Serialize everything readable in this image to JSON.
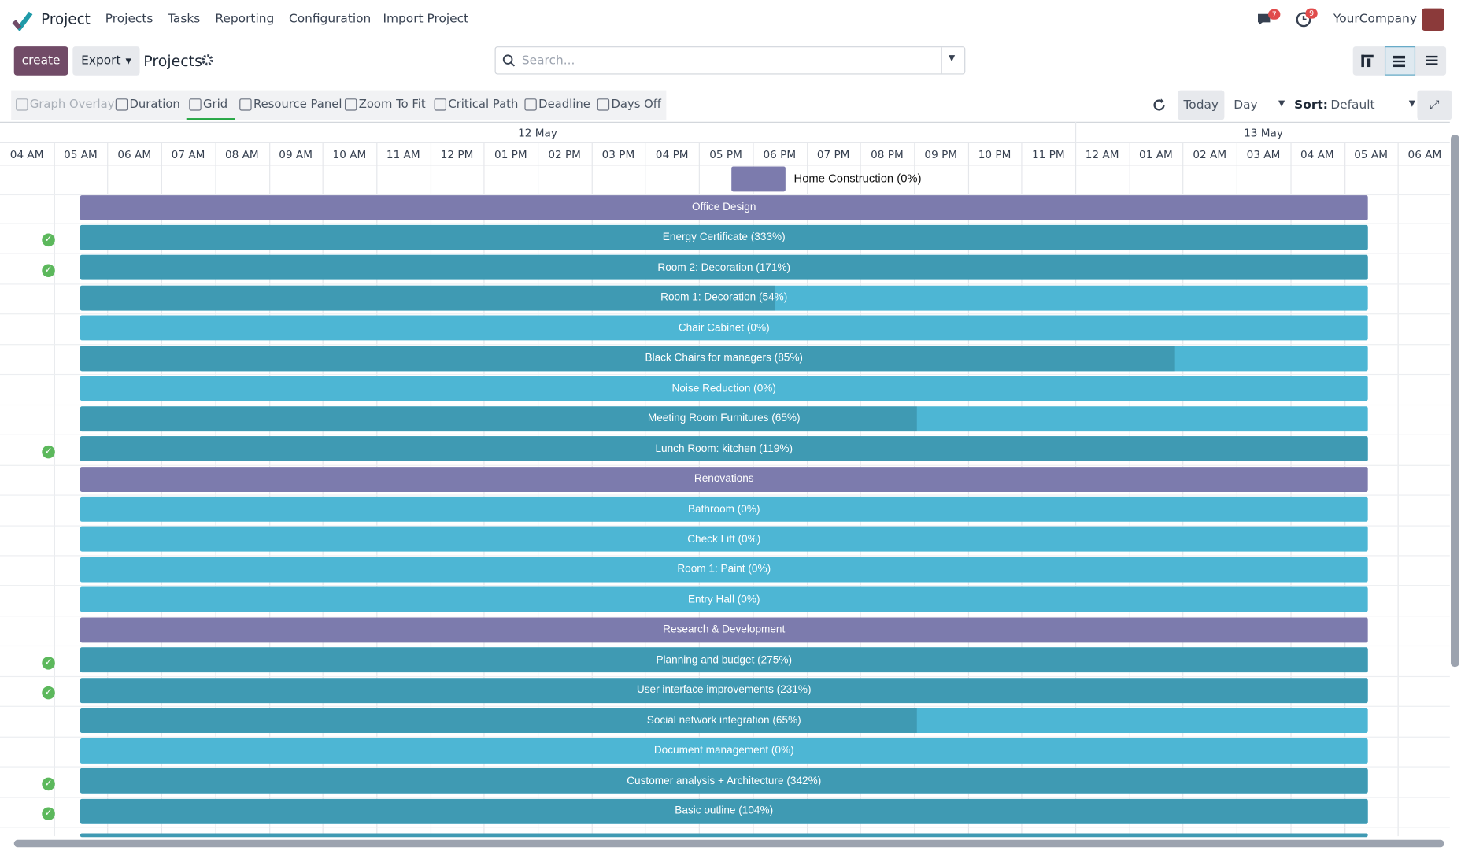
{
  "header": {
    "app": "Project",
    "menu": [
      "Projects",
      "Tasks",
      "Reporting",
      "Configuration",
      "Import Project"
    ],
    "badges": [
      7,
      9
    ],
    "company": "YourCompany"
  },
  "control_panel": {
    "create": "create",
    "export": "Export",
    "breadcrumb": "Projects",
    "search_placeholder": "Search..."
  },
  "toolbar": {
    "tools": [
      "Graph Overlay",
      "Duration",
      "Grid",
      "Resource Panel",
      "Zoom To Fit",
      "Critical Path",
      "Deadline",
      "Days Off"
    ],
    "today": "Today",
    "scale": "Day",
    "sort_label": "Sort:",
    "sort_value": "Default"
  },
  "gantt": {
    "dates": [
      "12 May",
      "13 May"
    ],
    "hours": [
      "04 AM",
      "05 AM",
      "06 AM",
      "07 AM",
      "08 AM",
      "09 AM",
      "10 AM",
      "11 AM",
      "12 PM",
      "01 PM",
      "02 PM",
      "03 PM",
      "04 PM",
      "05 PM",
      "06 PM",
      "07 PM",
      "08 PM",
      "09 PM",
      "10 PM",
      "11 PM",
      "12 AM",
      "01 AM",
      "02 AM",
      "03 AM",
      "04 AM",
      "05 AM",
      "06 AM"
    ],
    "rows": [
      "Home Construction (0%)",
      "Office Design",
      "Energy Certificate (333%)",
      "Room 2: Decoration (171%)",
      "Room 1: Decoration (54%)",
      "Chair Cabinet (0%)",
      "Black Chairs for managers (85%)",
      "Noise Reduction (0%)",
      "Meeting Room Furnitures (65%)",
      "Lunch Room: kitchen (119%)",
      "Renovations",
      "Bathroom (0%)",
      "Check Lift (0%)",
      "Room 1: Paint (0%)",
      "Entry Hall (0%)",
      "Research & Development",
      "Planning and budget (275%)",
      "User interface improvements (231%)",
      "Social network integration (65%)",
      "Document management (0%)",
      "Customer analysis + Architecture (342%)",
      "Basic outline (104%)"
    ]
  }
}
